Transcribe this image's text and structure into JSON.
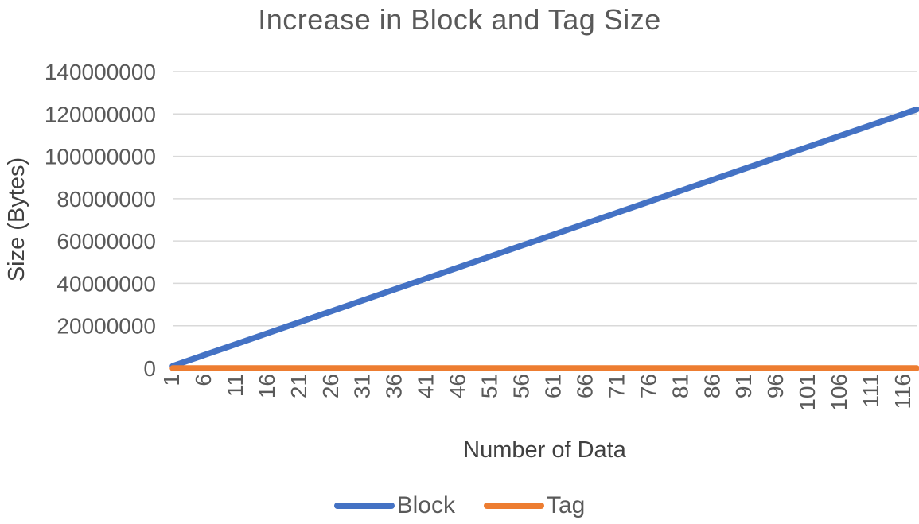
{
  "chart_data": {
    "type": "line",
    "title": "Increase in Block and Tag Size",
    "xlabel": "Number of Data",
    "ylabel": "Size (Bytes)",
    "xlim": [
      1,
      118
    ],
    "ylim": [
      0,
      140000000
    ],
    "grid": "horizontal-only",
    "legend_position": "bottom",
    "gridline_color": "#D9D9D9",
    "text_color": "#595959",
    "x_tick_labels": [
      1,
      6,
      11,
      16,
      21,
      26,
      31,
      36,
      41,
      46,
      51,
      56,
      61,
      66,
      71,
      76,
      81,
      86,
      91,
      96,
      101,
      106,
      111,
      116
    ],
    "y_ticks": [
      0,
      20000000,
      40000000,
      60000000,
      80000000,
      100000000,
      120000000,
      140000000
    ],
    "series": [
      {
        "name": "Block",
        "color": "#4472C4",
        "x": [
          1,
          6,
          11,
          16,
          21,
          26,
          31,
          36,
          41,
          46,
          51,
          56,
          61,
          66,
          71,
          76,
          81,
          86,
          91,
          96,
          101,
          106,
          111,
          116,
          118
        ],
        "values": [
          1035000,
          6210000,
          11385000,
          16560000,
          21735000,
          26910000,
          32085000,
          37260000,
          42435000,
          47610000,
          52785000,
          57960000,
          63135000,
          68310000,
          73485000,
          78660000,
          83835000,
          89010000,
          94185000,
          99360000,
          104535000,
          109710000,
          114885000,
          120060000,
          122130000
        ]
      },
      {
        "name": "Tag",
        "color": "#ED7D31",
        "x": [
          1,
          6,
          11,
          16,
          21,
          26,
          31,
          36,
          41,
          46,
          51,
          56,
          61,
          66,
          71,
          76,
          81,
          86,
          91,
          96,
          101,
          106,
          111,
          116,
          118
        ],
        "values": [
          0,
          0,
          0,
          0,
          0,
          0,
          0,
          0,
          0,
          0,
          0,
          0,
          0,
          0,
          0,
          0,
          0,
          0,
          0,
          0,
          0,
          0,
          0,
          0,
          0
        ]
      }
    ]
  }
}
